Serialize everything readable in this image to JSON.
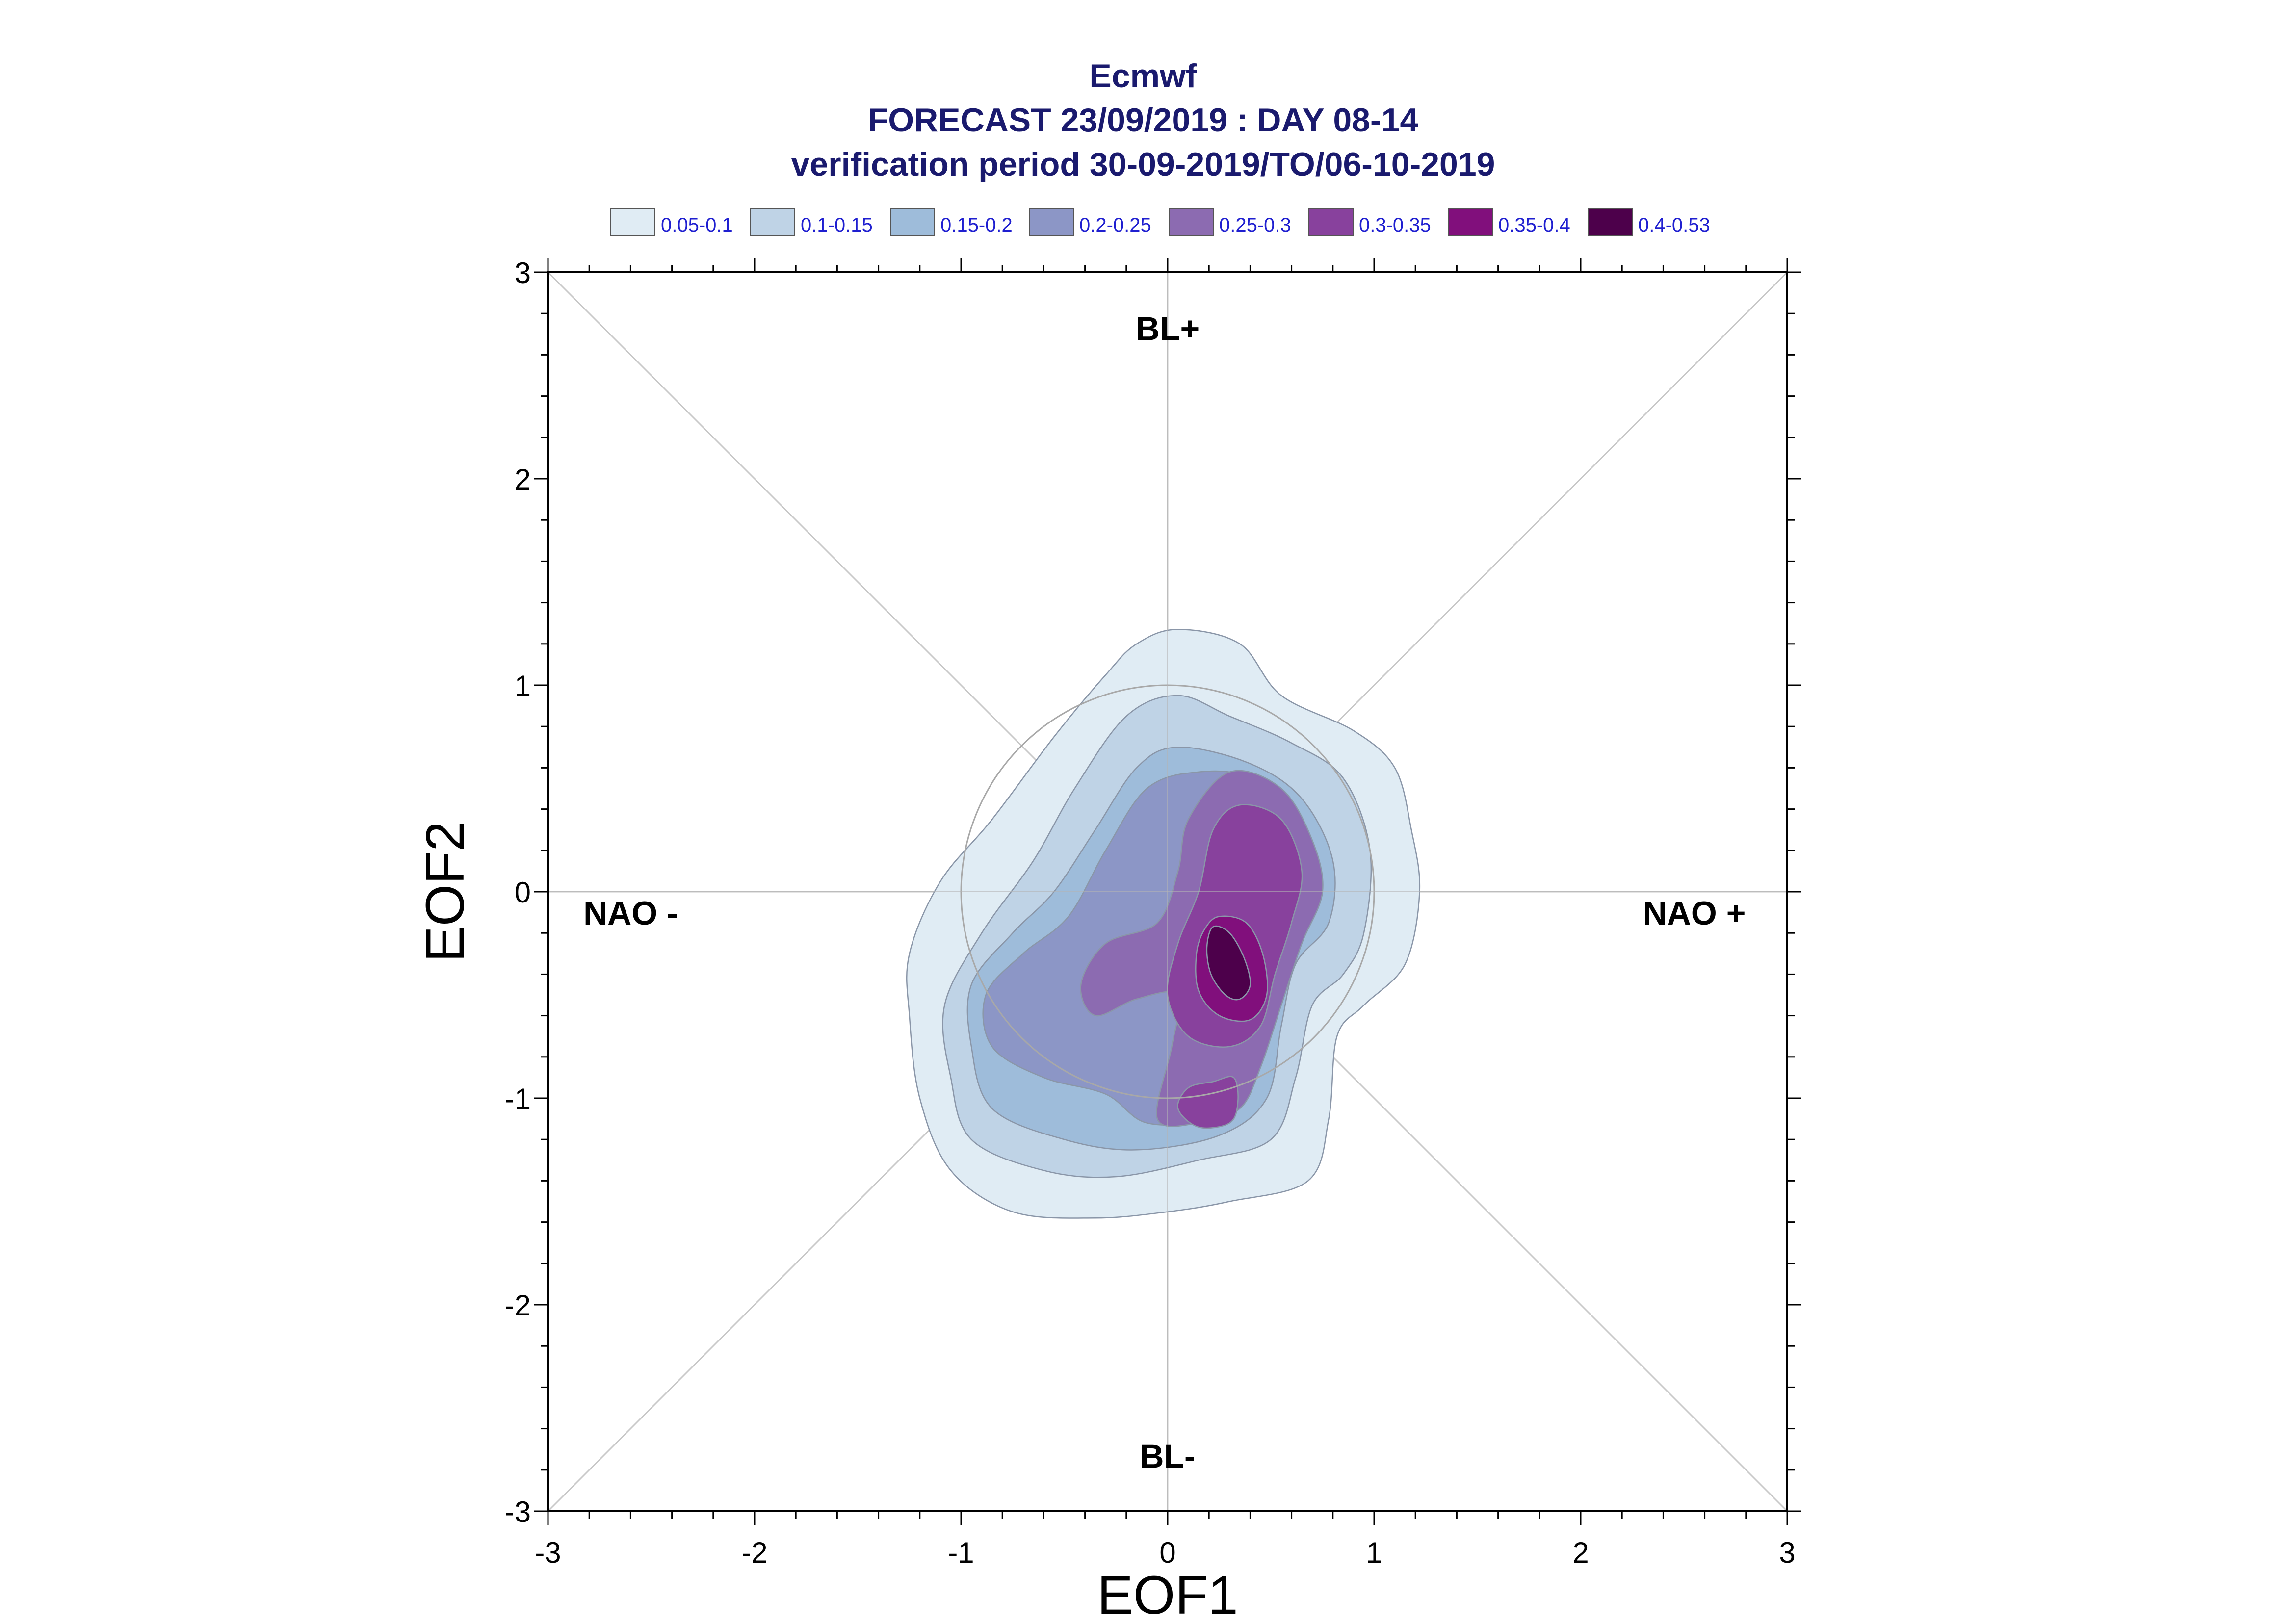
{
  "chart_data": {
    "type": "contour",
    "title_lines": [
      "Ecmwf",
      "FORECAST 23/09/2019 : DAY 08-14",
      "verification period 30-09-2019/TO/06-10-2019"
    ],
    "xlabel": "EOF1",
    "ylabel": "EOF2",
    "xlim": [
      -3,
      3
    ],
    "ylim": [
      -3,
      3
    ],
    "xticks": [
      "-3",
      "-2",
      "-1",
      "0",
      "1",
      "2",
      "3"
    ],
    "yticks": [
      "-3",
      "-2",
      "-1",
      "0",
      "1",
      "2",
      "3"
    ],
    "regime_labels": [
      {
        "text": "BL+",
        "x": 0,
        "y": 2.73
      },
      {
        "text": "BL-",
        "x": 0,
        "y": -2.73
      },
      {
        "text": "NAO -",
        "x": -2.6,
        "y": -0.1
      },
      {
        "text": "NAO +",
        "x": 2.55,
        "y": -0.1
      }
    ],
    "reference_circle_radius": 1,
    "legend": [
      {
        "label": "0.05-0.1",
        "color": "#e0ecf4"
      },
      {
        "label": "0.1-0.15",
        "color": "#bfd3e6"
      },
      {
        "label": "0.15-0.2",
        "color": "#9ebcda"
      },
      {
        "label": "0.2-0.25",
        "color": "#8c96c6"
      },
      {
        "label": "0.25-0.3",
        "color": "#8c6bb1"
      },
      {
        "label": "0.3-0.35",
        "color": "#88419d"
      },
      {
        "label": "0.35-0.4",
        "color": "#810f7c"
      },
      {
        "label": "0.4-0.53",
        "color": "#4d004b"
      }
    ],
    "contour_levels": [
      {
        "range": "0.05-0.1",
        "blobs": [
          [
            [
              0.05,
              1.27
            ],
            [
              0.35,
              1.2
            ],
            [
              0.55,
              0.95
            ],
            [
              0.9,
              0.78
            ],
            [
              1.1,
              0.6
            ],
            [
              1.18,
              0.3
            ],
            [
              1.22,
              0.0
            ],
            [
              1.15,
              -0.35
            ],
            [
              0.95,
              -0.55
            ],
            [
              0.82,
              -0.7
            ],
            [
              0.78,
              -1.1
            ],
            [
              0.68,
              -1.4
            ],
            [
              0.3,
              -1.5
            ],
            [
              0.0,
              -1.55
            ],
            [
              -0.35,
              -1.58
            ],
            [
              -0.75,
              -1.55
            ],
            [
              -1.05,
              -1.35
            ],
            [
              -1.2,
              -1.0
            ],
            [
              -1.25,
              -0.6
            ],
            [
              -1.25,
              -0.3
            ],
            [
              -1.1,
              0.05
            ],
            [
              -0.85,
              0.35
            ],
            [
              -0.55,
              0.75
            ],
            [
              -0.3,
              1.05
            ],
            [
              -0.15,
              1.2
            ]
          ]
        ]
      },
      {
        "range": "0.1-0.15",
        "blobs": [
          [
            [
              0.05,
              0.95
            ],
            [
              0.3,
              0.85
            ],
            [
              0.6,
              0.72
            ],
            [
              0.85,
              0.55
            ],
            [
              0.98,
              0.2
            ],
            [
              0.95,
              -0.2
            ],
            [
              0.85,
              -0.4
            ],
            [
              0.7,
              -0.55
            ],
            [
              0.62,
              -0.9
            ],
            [
              0.5,
              -1.2
            ],
            [
              0.15,
              -1.3
            ],
            [
              -0.25,
              -1.38
            ],
            [
              -0.6,
              -1.35
            ],
            [
              -0.95,
              -1.2
            ],
            [
              -1.05,
              -0.9
            ],
            [
              -1.08,
              -0.55
            ],
            [
              -0.9,
              -0.2
            ],
            [
              -0.65,
              0.15
            ],
            [
              -0.45,
              0.5
            ],
            [
              -0.2,
              0.85
            ]
          ]
        ]
      },
      {
        "range": "0.15-0.2",
        "blobs": [
          [
            [
              0.05,
              0.7
            ],
            [
              0.4,
              0.62
            ],
            [
              0.65,
              0.45
            ],
            [
              0.8,
              0.15
            ],
            [
              0.78,
              -0.15
            ],
            [
              0.62,
              -0.35
            ],
            [
              0.55,
              -0.65
            ],
            [
              0.48,
              -1.0
            ],
            [
              0.25,
              -1.18
            ],
            [
              -0.15,
              -1.25
            ],
            [
              -0.5,
              -1.2
            ],
            [
              -0.85,
              -1.05
            ],
            [
              -0.95,
              -0.75
            ],
            [
              -0.95,
              -0.45
            ],
            [
              -0.75,
              -0.2
            ],
            [
              -0.55,
              0.0
            ],
            [
              -0.35,
              0.3
            ],
            [
              -0.15,
              0.6
            ]
          ]
        ]
      },
      {
        "range": "0.2-0.25",
        "blobs": [
          [
            [
              0.15,
              0.58
            ],
            [
              0.4,
              0.55
            ],
            [
              0.62,
              0.35
            ],
            [
              0.68,
              0.1
            ],
            [
              0.62,
              -0.1
            ],
            [
              0.5,
              -0.35
            ],
            [
              0.45,
              -0.65
            ],
            [
              0.4,
              -0.95
            ],
            [
              0.2,
              -1.1
            ],
            [
              -0.1,
              -1.12
            ],
            [
              -0.3,
              -0.98
            ],
            [
              -0.6,
              -0.9
            ],
            [
              -0.85,
              -0.75
            ],
            [
              -0.88,
              -0.5
            ],
            [
              -0.7,
              -0.3
            ],
            [
              -0.48,
              -0.12
            ],
            [
              -0.3,
              0.2
            ],
            [
              -0.1,
              0.5
            ]
          ]
        ]
      },
      {
        "range": "0.25-0.3",
        "blobs": [
          [
            [
              0.3,
              0.58
            ],
            [
              0.55,
              0.5
            ],
            [
              0.7,
              0.25
            ],
            [
              0.75,
              0.0
            ],
            [
              0.65,
              -0.25
            ],
            [
              0.55,
              -0.55
            ],
            [
              0.45,
              -0.85
            ],
            [
              0.35,
              -1.05
            ],
            [
              0.15,
              -1.12
            ],
            [
              -0.05,
              -1.1
            ],
            [
              0.02,
              -0.75
            ],
            [
              0.05,
              -0.5
            ],
            [
              -0.15,
              -0.52
            ],
            [
              -0.35,
              -0.6
            ],
            [
              -0.42,
              -0.45
            ],
            [
              -0.3,
              -0.25
            ],
            [
              -0.05,
              -0.15
            ],
            [
              0.05,
              0.1
            ],
            [
              0.1,
              0.35
            ]
          ]
        ]
      },
      {
        "range": "0.3-0.35",
        "blobs": [
          [
            [
              0.35,
              0.42
            ],
            [
              0.55,
              0.35
            ],
            [
              0.65,
              0.1
            ],
            [
              0.6,
              -0.15
            ],
            [
              0.52,
              -0.4
            ],
            [
              0.45,
              -0.65
            ],
            [
              0.3,
              -0.75
            ],
            [
              0.1,
              -0.7
            ],
            [
              0.0,
              -0.5
            ],
            [
              0.05,
              -0.25
            ],
            [
              0.15,
              0.0
            ],
            [
              0.22,
              0.3
            ]
          ],
          [
            [
              0.22,
              -0.92
            ],
            [
              0.32,
              -0.9
            ],
            [
              0.34,
              -1.02
            ],
            [
              0.3,
              -1.12
            ],
            [
              0.15,
              -1.14
            ],
            [
              0.05,
              -1.05
            ],
            [
              0.1,
              -0.95
            ]
          ]
        ]
      },
      {
        "range": "0.35-0.4",
        "blobs": [
          [
            [
              0.25,
              -0.12
            ],
            [
              0.38,
              -0.15
            ],
            [
              0.46,
              -0.3
            ],
            [
              0.48,
              -0.5
            ],
            [
              0.4,
              -0.62
            ],
            [
              0.25,
              -0.6
            ],
            [
              0.15,
              -0.48
            ],
            [
              0.14,
              -0.3
            ],
            [
              0.18,
              -0.18
            ]
          ]
        ]
      },
      {
        "range": "0.4-0.53",
        "blobs": [
          [
            [
              0.22,
              -0.17
            ],
            [
              0.3,
              -0.2
            ],
            [
              0.37,
              -0.32
            ],
            [
              0.4,
              -0.45
            ],
            [
              0.35,
              -0.52
            ],
            [
              0.28,
              -0.5
            ],
            [
              0.21,
              -0.4
            ],
            [
              0.19,
              -0.27
            ]
          ]
        ]
      }
    ]
  }
}
